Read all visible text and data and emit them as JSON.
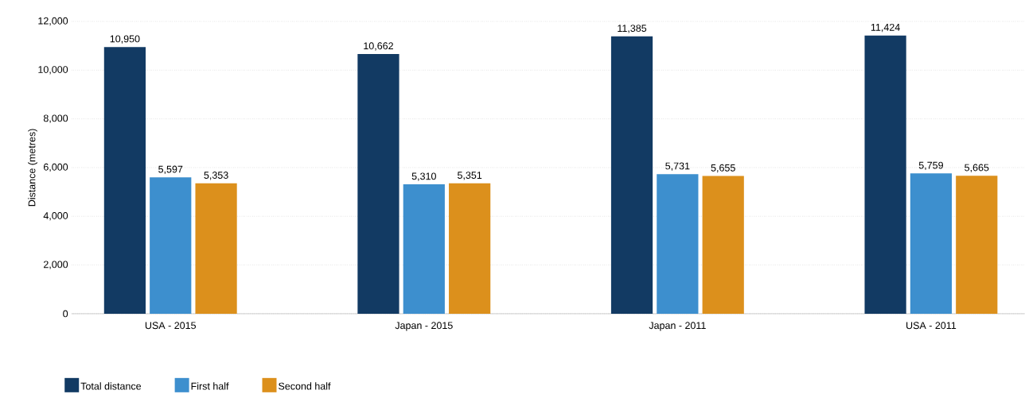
{
  "chart_data": {
    "type": "bar",
    "ylabel": "Distance (metres)",
    "categories": [
      "USA - 2015",
      "Japan - 2015",
      "Japan - 2011",
      "USA - 2011"
    ],
    "series": [
      {
        "name": "Total distance",
        "color": "#123a63",
        "values": [
          10950,
          10662,
          11385,
          11424
        ],
        "value_labels": [
          "10,950",
          "10,662",
          "11,385",
          "11,424"
        ]
      },
      {
        "name": "First half",
        "color": "#3d8fce",
        "values": [
          5597,
          5310,
          5731,
          5759
        ],
        "value_labels": [
          "5,597",
          "5,310",
          "5,731",
          "5,759"
        ]
      },
      {
        "name": "Second half",
        "color": "#dc901c",
        "values": [
          5353,
          5351,
          5655,
          5665
        ],
        "value_labels": [
          "5,353",
          "5,351",
          "5,655",
          "5,665"
        ]
      }
    ],
    "ylim": [
      0,
      12000
    ],
    "yticks": [
      0,
      {
        "value": 2000,
        "label": "2,000"
      },
      {
        "value": 4000,
        "label": "4,000"
      },
      {
        "value": 6000,
        "label": "6,000"
      },
      {
        "value": 8000,
        "label": "8,000"
      },
      {
        "value": 10000,
        "label": "10,000"
      },
      {
        "value": 12000,
        "label": "12,000"
      }
    ],
    "grid": "y",
    "legend": "bottom left"
  }
}
